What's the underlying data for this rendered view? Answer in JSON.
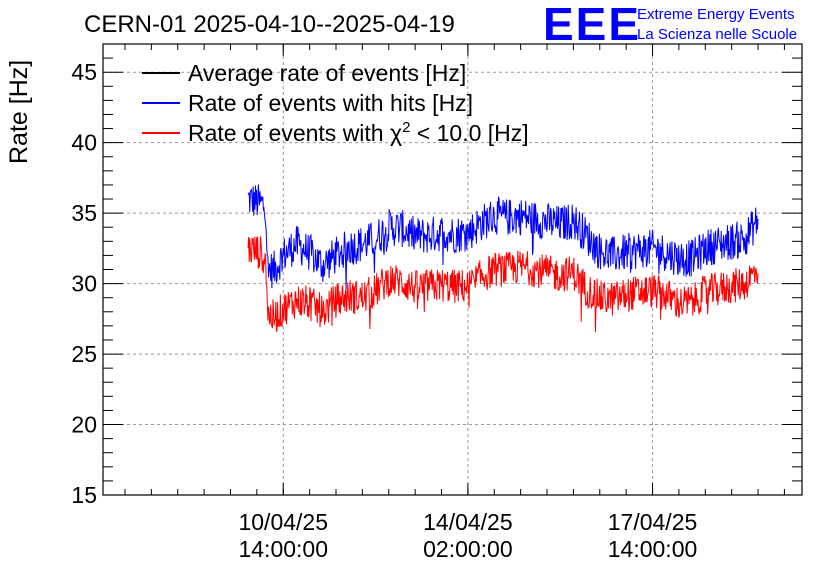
{
  "colors": {
    "average": "#000000",
    "hits": "#0000ff",
    "chi2": "#ff0000",
    "logo": "#0000ff",
    "grid": "#999999"
  },
  "logo": {
    "mark": "EEE",
    "line1": "Extreme Energy Events",
    "line2": "La Scienza nelle Scuole"
  },
  "chart_data": {
    "type": "line",
    "title": "CERN-01 2025-04-10--2025-04-19",
    "ylabel": "Rate [Hz]",
    "xlabel": "",
    "ylim": [
      15,
      47
    ],
    "xlim_hours": [
      -82,
      236
    ],
    "grid": true,
    "legend_position": "top-left",
    "yticks": [
      15,
      20,
      25,
      30,
      35,
      40,
      45
    ],
    "xticks": [
      {
        "hours": 0,
        "date": "10/04/25",
        "time": "14:00:00"
      },
      {
        "hours": 84,
        "date": "14/04/25",
        "time": "02:00:00"
      },
      {
        "hours": 168,
        "date": "17/04/25",
        "time": "14:00:00"
      }
    ],
    "x_hours": [
      -16,
      -12,
      -8,
      -7,
      -4,
      0,
      6,
      12,
      18,
      24,
      30,
      36,
      42,
      48,
      54,
      60,
      66,
      72,
      78,
      84,
      90,
      96,
      102,
      108,
      114,
      120,
      126,
      132,
      138,
      144,
      150,
      156,
      162,
      168,
      174,
      180,
      186,
      192,
      198,
      204,
      210,
      216
    ],
    "series": [
      {
        "name": "Average rate of events [Hz]",
        "color": "#000000",
        "values": []
      },
      {
        "name": "Rate of events with hits [Hz]",
        "color": "#0000ff",
        "values": [
          36.0,
          35.8,
          35.5,
          31.0,
          31.0,
          32.0,
          32.8,
          32.2,
          31.3,
          32.0,
          32.6,
          32.8,
          33.2,
          34.0,
          33.9,
          33.4,
          33.4,
          33.6,
          33.5,
          33.6,
          34.3,
          34.8,
          34.7,
          34.8,
          34.6,
          34.4,
          34.2,
          34.5,
          33.4,
          32.3,
          32.0,
          32.2,
          32.4,
          32.5,
          32.2,
          31.8,
          31.8,
          32.5,
          32.8,
          33.0,
          33.2,
          34.5
        ]
      },
      {
        "name": "Rate of events with χ² < 10.0 [Hz]",
        "legend_main": "Rate of events with χ",
        "legend_sup": "2",
        "legend_tail": " < 10.0 [Hz]",
        "color": "#ff0000",
        "values": [
          32.5,
          32.3,
          32.0,
          27.8,
          27.6,
          28.2,
          28.8,
          28.6,
          28.0,
          28.8,
          29.1,
          29.0,
          29.5,
          30.3,
          30.1,
          29.7,
          29.8,
          29.9,
          29.8,
          29.8,
          30.5,
          31.0,
          31.0,
          31.2,
          31.0,
          30.8,
          30.6,
          30.8,
          29.6,
          29.0,
          28.9,
          29.2,
          29.4,
          29.5,
          29.2,
          28.6,
          28.7,
          29.4,
          29.6,
          29.8,
          30.0,
          31.0
        ]
      }
    ]
  }
}
